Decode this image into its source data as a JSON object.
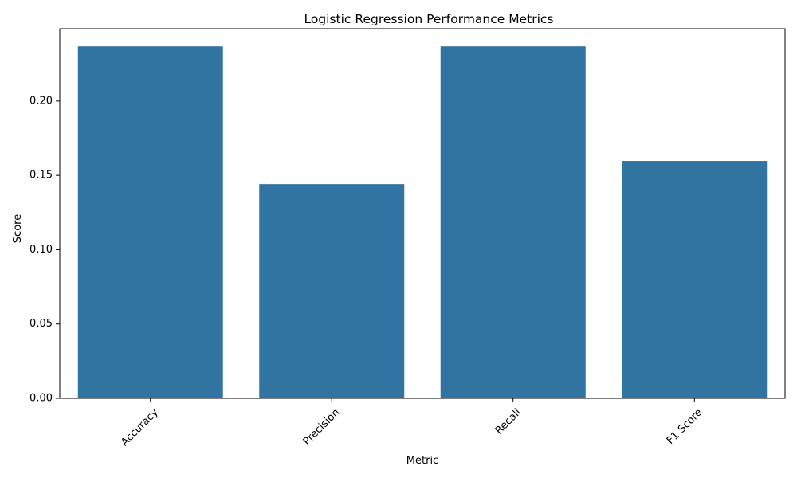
{
  "chart_data": {
    "type": "bar",
    "title": "Logistic Regression Performance Metrics",
    "xlabel": "Metric",
    "ylabel": "Score",
    "categories": [
      "Accuracy",
      "Precision",
      "Recall",
      "F1 Score"
    ],
    "values": [
      0.2368,
      0.1441,
      0.2368,
      0.1597
    ],
    "ylim": [
      0,
      0.2487
    ],
    "yticks": [
      0.0,
      0.05,
      0.1,
      0.15,
      0.2
    ],
    "ytick_labels": [
      "0.00",
      "0.05",
      "0.10",
      "0.15",
      "0.20"
    ],
    "xtick_rotation": 45,
    "grid": false,
    "bar_color": "#3274a1"
  }
}
